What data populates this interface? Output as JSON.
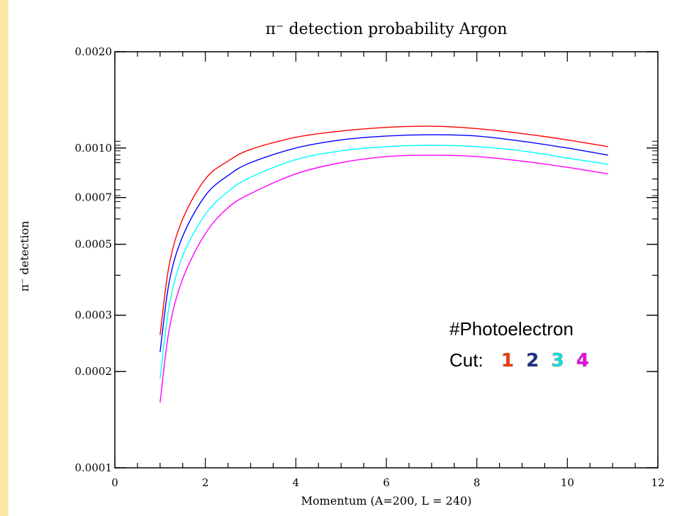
{
  "chart_data": {
    "type": "line",
    "title": "π⁻ detection probability Argon",
    "xlabel": "Momentum (A=200, L = 240)",
    "ylabel": "π⁻ detection",
    "xlim": [
      0,
      12
    ],
    "ylim": [
      0.0001,
      0.002
    ],
    "yscale": "log",
    "x_ticks": [
      "0",
      "2",
      "4",
      "6",
      "8",
      "10",
      "12"
    ],
    "y_ticks": [
      {
        "value": 0.0001,
        "label": "0.0001"
      },
      {
        "value": 0.0002,
        "label": "0.0002"
      },
      {
        "value": 0.0003,
        "label": "0.0003"
      },
      {
        "value": 0.0005,
        "label": "0.0005"
      },
      {
        "value": 0.0007,
        "label": "0.0007"
      },
      {
        "value": 0.001,
        "label": "0.0010"
      },
      {
        "value": 0.002,
        "label": "0.0020"
      }
    ],
    "grid": false,
    "x": [
      1.0,
      1.2,
      1.5,
      2.0,
      2.5,
      3.0,
      4.0,
      5.0,
      6.0,
      7.0,
      8.0,
      9.0,
      10.0,
      10.9
    ],
    "series": [
      {
        "color": "#ff0000",
        "values": [
          0.00026,
          0.00043,
          0.0006,
          0.0008,
          0.00091,
          0.00099,
          0.00108,
          0.00113,
          0.00116,
          0.00117,
          0.00115,
          0.00111,
          0.00106,
          0.00101
        ]
      },
      {
        "color": "#0000ff",
        "values": [
          0.00023,
          0.00038,
          0.00053,
          0.00071,
          0.00082,
          0.0009,
          0.001,
          0.00106,
          0.00109,
          0.0011,
          0.00109,
          0.00105,
          0.001,
          0.00095
        ]
      },
      {
        "color": "#00ffff",
        "values": [
          0.00019,
          0.00032,
          0.00046,
          0.00062,
          0.00073,
          0.00081,
          0.00092,
          0.00098,
          0.00101,
          0.00102,
          0.00101,
          0.00098,
          0.00093,
          0.00089
        ]
      },
      {
        "color": "#ff00ff",
        "values": [
          0.00016,
          0.00027,
          0.00039,
          0.00054,
          0.00065,
          0.00072,
          0.00083,
          0.0009,
          0.00094,
          0.00095,
          0.00094,
          0.00091,
          0.00087,
          0.00083
        ]
      }
    ]
  },
  "annotation": {
    "line1": "#Photoelectron",
    "line2_prefix": "Cut:",
    "cuts": [
      {
        "label": "1",
        "color": "#ff3300"
      },
      {
        "label": "2",
        "color": "#1a2a8c"
      },
      {
        "label": "3",
        "color": "#00e5e5"
      },
      {
        "label": "4",
        "color": "#ee00ee"
      }
    ]
  },
  "colors": {
    "page_border": "#fbe7a8",
    "background": "#ffffff"
  }
}
